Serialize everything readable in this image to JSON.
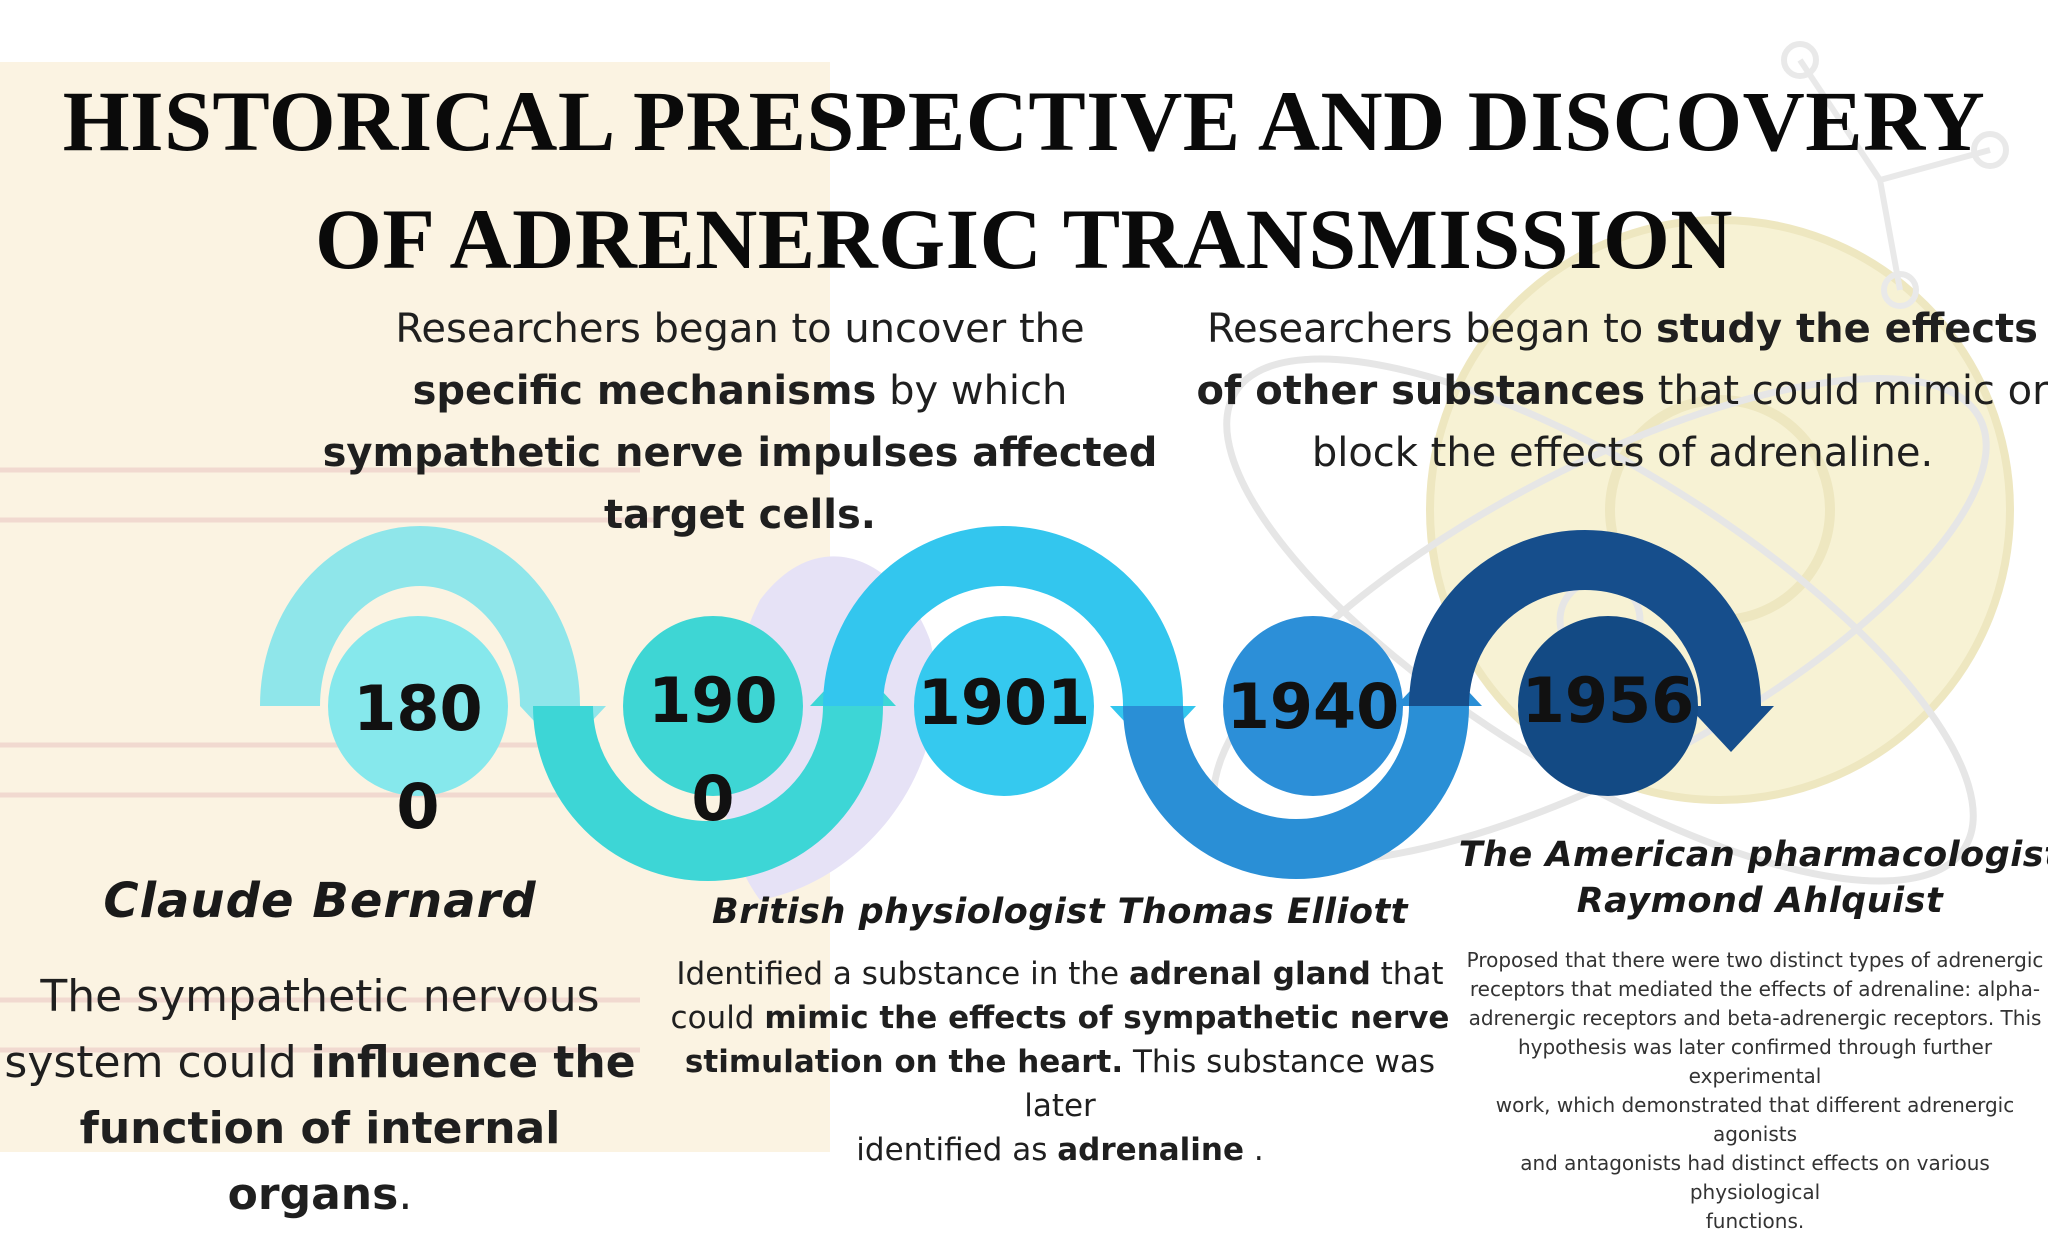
{
  "title": {
    "line1": "HISTORICAL PRESPECTIVE AND DISCOVERY",
    "line2": "OF ADRENERGIC TRANSMISSION"
  },
  "intro_left": {
    "p1": "Researchers began to uncover the",
    "b1": "specific mechanisms",
    "p2": " by which",
    "b2": "sympathetic nerve impulses affected",
    "b3": "target cells."
  },
  "intro_right": {
    "p1": "Researchers began to ",
    "b1": "study the effects",
    "b2": "of other substances",
    "p2": " that could mimic or",
    "p3": "block the effects of adrenaline."
  },
  "colors": {
    "arc1": "#8fe6ea",
    "arc2": "#3dd6d6",
    "arc3": "#33c6ee",
    "arc4": "#2a8fd6",
    "arc5": "#164e8c",
    "circle1": "#86e8ec",
    "circle2": "#3ed6d4",
    "circle3": "#35c9ef",
    "circle4": "#2c8fd8",
    "circle5": "#134a84"
  },
  "timeline": [
    {
      "year_l1": "180",
      "year_l2": "0"
    },
    {
      "year_l1": "190",
      "year_l2": "0"
    },
    {
      "year_l1": "1901",
      "year_l2": ""
    },
    {
      "year_l1": "1940",
      "year_l2": ""
    },
    {
      "year_l1": "1956",
      "year_l2": ""
    }
  ],
  "bernard": {
    "name": "Claude Bernard",
    "p1": "The sympathetic nervous",
    "p2": "system could ",
    "b1": "influence the",
    "b2": "function of internal organs",
    "p3": "."
  },
  "elliott": {
    "name": "British physiologist Thomas Elliott",
    "p1": "Identified a substance in the ",
    "b1": "adrenal gland",
    "p2": " that",
    "p3": "could ",
    "b2": "mimic the effects of sympathetic nerve",
    "b3": "stimulation on the heart.",
    "p4": " This substance was later",
    "p5": "identified as ",
    "b4": "adrenaline",
    "p6": " ."
  },
  "ahlquist": {
    "name_l1": "The American pharmacologist",
    "name_l2": "Raymond Ahlquist",
    "l1": "Proposed that there were two distinct types of adrenergic",
    "l2": "receptors that mediated the effects of adrenaline: alpha-",
    "l3": "adrenergic receptors and beta-adrenergic receptors. This",
    "l4": "hypothesis was later confirmed through further experimental",
    "l5": "work, which demonstrated that different adrenergic agonists",
    "l6": "and antagonists had distinct effects on various physiological",
    "l7": "functions."
  }
}
